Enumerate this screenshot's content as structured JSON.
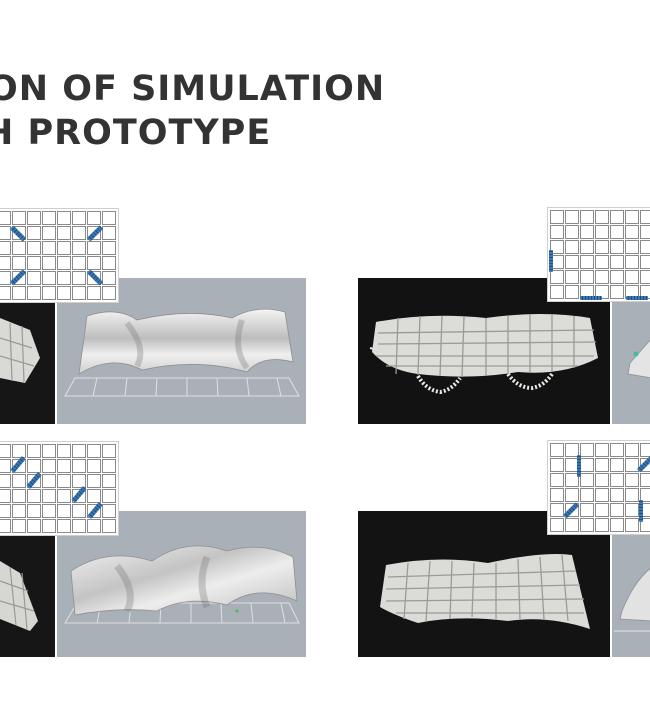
{
  "heading": {
    "line1": "ON OF SIMULATION",
    "line2": "H PROTOTYPE"
  },
  "colors": {
    "title": "#333333",
    "sim_background": "#a9b0b8",
    "photo_background": "#111111",
    "actuator": "#2e6da4"
  },
  "icons": [
    "actuator-grid-diagram",
    "fabric-simulation-render",
    "fabric-prototype-photo"
  ]
}
